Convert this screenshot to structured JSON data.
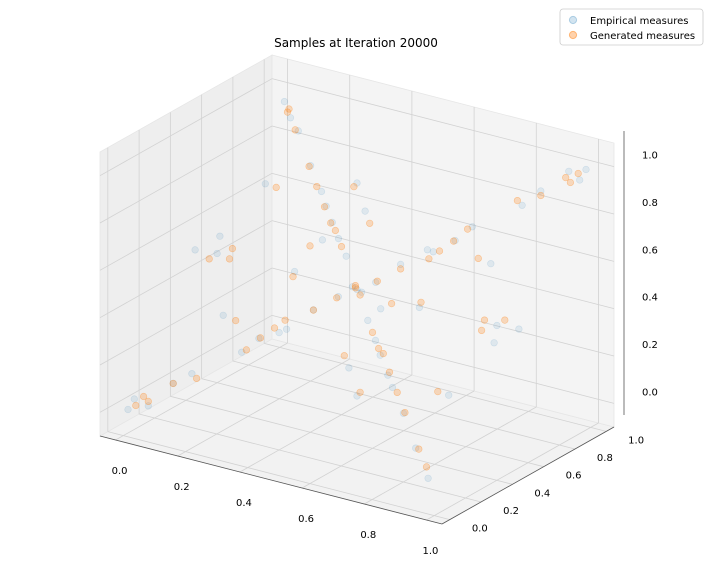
{
  "chart_data": {
    "type": "scatter",
    "projection": "3d",
    "title": "Samples at Iteration 20000",
    "xlabel": "",
    "ylabel": "",
    "zlabel": "",
    "xlim": [
      -0.05,
      1.05
    ],
    "ylim": [
      -0.05,
      1.05
    ],
    "zlim": [
      -0.1,
      1.1
    ],
    "x_ticks": [
      "0.0",
      "0.2",
      "0.4",
      "0.6",
      "0.8",
      "1.0"
    ],
    "y_ticks": [
      "0.0",
      "0.2",
      "0.4",
      "0.6",
      "0.8",
      "1.0"
    ],
    "z_ticks": [
      "0.0",
      "0.2",
      "0.4",
      "0.6",
      "0.8",
      "1.0"
    ],
    "grid": true,
    "legend_position": "top-right",
    "series": [
      {
        "name": "Empirical measures",
        "color": "#1f77b4",
        "alpha": 0.1,
        "points": [
          [
            0.02,
            0.03,
            0.05
          ],
          [
            0.98,
            0.97,
            0.95
          ],
          [
            0.03,
            0.97,
            0.96
          ],
          [
            0.97,
            0.02,
            0.04
          ],
          [
            0.5,
            0.5,
            0.5
          ],
          [
            0.25,
            0.26,
            0.24
          ],
          [
            0.75,
            0.74,
            0.76
          ],
          [
            0.26,
            0.75,
            0.74
          ],
          [
            0.74,
            0.25,
            0.26
          ],
          [
            0.1,
            0.12,
            0.11
          ],
          [
            0.9,
            0.88,
            0.91
          ],
          [
            0.12,
            0.88,
            0.9
          ],
          [
            0.88,
            0.12,
            0.1
          ],
          [
            0.4,
            0.42,
            0.41
          ],
          [
            0.6,
            0.58,
            0.61
          ],
          [
            0.42,
            0.59,
            0.58
          ],
          [
            0.58,
            0.41,
            0.43
          ],
          [
            0.05,
            0.06,
            0.02
          ],
          [
            0.95,
            0.96,
            0.98
          ],
          [
            0.33,
            0.34,
            0.32
          ],
          [
            0.66,
            0.67,
            0.65
          ],
          [
            0.34,
            0.66,
            0.67
          ],
          [
            0.66,
            0.33,
            0.34
          ],
          [
            0.15,
            0.14,
            0.16
          ],
          [
            0.85,
            0.86,
            0.84
          ],
          [
            0.2,
            0.8,
            0.81
          ],
          [
            0.8,
            0.2,
            0.19
          ],
          [
            0.55,
            0.52,
            0.54
          ],
          [
            0.45,
            0.48,
            0.46
          ],
          [
            0.7,
            0.3,
            0.28
          ],
          [
            0.3,
            0.7,
            0.71
          ],
          [
            0.08,
            0.3,
            0.6
          ],
          [
            0.92,
            0.7,
            0.4
          ],
          [
            0.6,
            0.08,
            0.9
          ],
          [
            0.35,
            0.95,
            0.2
          ],
          [
            0.18,
            0.55,
            0.82
          ],
          [
            0.82,
            0.45,
            0.18
          ],
          [
            0.5,
            0.05,
            0.5
          ],
          [
            0.5,
            0.95,
            0.5
          ],
          [
            0.05,
            0.5,
            0.5
          ],
          [
            0.95,
            0.5,
            0.5
          ],
          [
            0.5,
            0.5,
            0.05
          ],
          [
            0.5,
            0.5,
            0.95
          ],
          [
            0.22,
            0.18,
            0.75
          ],
          [
            0.78,
            0.82,
            0.25
          ],
          [
            0.65,
            0.15,
            0.35
          ],
          [
            0.35,
            0.85,
            0.65
          ],
          [
            0.12,
            0.4,
            0.3
          ],
          [
            0.88,
            0.6,
            0.7
          ],
          [
            0.44,
            0.22,
            0.66
          ],
          [
            0.56,
            0.78,
            0.34
          ],
          [
            0.01,
            0.01,
            0.01
          ],
          [
            0.99,
            0.99,
            0.99
          ],
          [
            0.28,
            0.31,
            0.29
          ],
          [
            0.72,
            0.69,
            0.71
          ],
          [
            0.38,
            0.62,
            0.63
          ],
          [
            0.62,
            0.38,
            0.37
          ],
          [
            0.47,
            0.53,
            0.49
          ],
          [
            0.53,
            0.47,
            0.51
          ],
          [
            0.07,
            0.93,
            0.92
          ]
        ]
      },
      {
        "name": "Generated measures",
        "color": "#ff7f0e",
        "alpha": 0.25,
        "points": [
          [
            0.04,
            0.05,
            0.06
          ],
          [
            0.96,
            0.95,
            0.94
          ],
          [
            0.05,
            0.95,
            0.93
          ],
          [
            0.95,
            0.05,
            0.07
          ],
          [
            0.49,
            0.51,
            0.5
          ],
          [
            0.27,
            0.25,
            0.26
          ],
          [
            0.73,
            0.75,
            0.74
          ],
          [
            0.24,
            0.76,
            0.75
          ],
          [
            0.76,
            0.24,
            0.25
          ],
          [
            0.11,
            0.1,
            0.12
          ],
          [
            0.89,
            0.9,
            0.88
          ],
          [
            0.1,
            0.9,
            0.89
          ],
          [
            0.9,
            0.1,
            0.11
          ],
          [
            0.41,
            0.4,
            0.42
          ],
          [
            0.59,
            0.6,
            0.58
          ],
          [
            0.4,
            0.6,
            0.61
          ],
          [
            0.6,
            0.4,
            0.39
          ],
          [
            0.06,
            0.04,
            0.05
          ],
          [
            0.94,
            0.96,
            0.95
          ],
          [
            0.32,
            0.33,
            0.34
          ],
          [
            0.68,
            0.67,
            0.66
          ],
          [
            0.33,
            0.67,
            0.66
          ],
          [
            0.67,
            0.33,
            0.35
          ],
          [
            0.16,
            0.15,
            0.14
          ],
          [
            0.84,
            0.85,
            0.86
          ],
          [
            0.19,
            0.81,
            0.8
          ],
          [
            0.81,
            0.19,
            0.2
          ],
          [
            0.54,
            0.55,
            0.53
          ],
          [
            0.46,
            0.45,
            0.47
          ],
          [
            0.71,
            0.29,
            0.3
          ],
          [
            0.29,
            0.71,
            0.7
          ],
          [
            0.1,
            0.35,
            0.55
          ],
          [
            0.9,
            0.65,
            0.45
          ],
          [
            0.55,
            0.1,
            0.85
          ],
          [
            0.4,
            0.92,
            0.25
          ],
          [
            0.2,
            0.58,
            0.8
          ],
          [
            0.8,
            0.42,
            0.2
          ],
          [
            0.48,
            0.08,
            0.52
          ],
          [
            0.52,
            0.92,
            0.48
          ],
          [
            0.08,
            0.52,
            0.48
          ],
          [
            0.92,
            0.48,
            0.52
          ],
          [
            0.52,
            0.48,
            0.08
          ],
          [
            0.48,
            0.52,
            0.92
          ],
          [
            0.25,
            0.2,
            0.7
          ],
          [
            0.75,
            0.8,
            0.3
          ],
          [
            0.62,
            0.18,
            0.38
          ],
          [
            0.38,
            0.82,
            0.62
          ],
          [
            0.15,
            0.42,
            0.28
          ],
          [
            0.85,
            0.58,
            0.72
          ],
          [
            0.42,
            0.25,
            0.62
          ],
          [
            0.58,
            0.75,
            0.38
          ],
          [
            0.03,
            0.02,
            0.03
          ],
          [
            0.97,
            0.98,
            0.97
          ],
          [
            0.3,
            0.28,
            0.31
          ],
          [
            0.7,
            0.72,
            0.69
          ],
          [
            0.36,
            0.64,
            0.65
          ],
          [
            0.64,
            0.36,
            0.35
          ],
          [
            0.5,
            0.49,
            0.52
          ],
          [
            0.51,
            0.5,
            0.48
          ],
          [
            0.06,
            0.94,
            0.95
          ]
        ]
      }
    ]
  }
}
